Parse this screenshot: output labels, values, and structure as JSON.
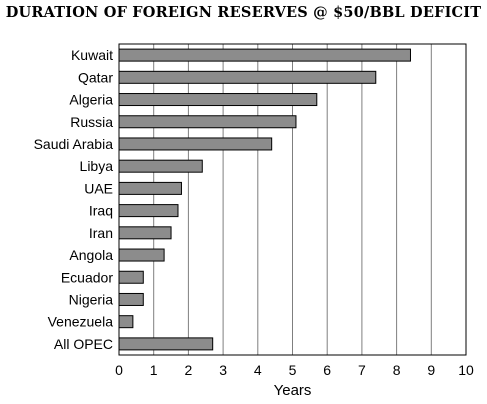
{
  "chart_data": {
    "type": "bar",
    "orientation": "horizontal",
    "title": "DURATION OF FOREIGN RESERVES @ $50/BBL DEFICIT",
    "xlabel": "Years",
    "ylabel": "",
    "xlim": [
      0,
      10
    ],
    "x_ticks": [
      "0",
      "1",
      "2",
      "3",
      "4",
      "5",
      "6",
      "7",
      "8",
      "9",
      "10"
    ],
    "grid": "vertical",
    "legend": "none",
    "categories": [
      "Kuwait",
      "Qatar",
      "Algeria",
      "Russia",
      "Saudi Arabia",
      "Libya",
      "UAE",
      "Iraq",
      "Iran",
      "Angola",
      "Ecuador",
      "Nigeria",
      "Venezuela",
      "All OPEC"
    ],
    "values": [
      8.4,
      7.4,
      5.7,
      5.1,
      4.4,
      2.4,
      1.8,
      1.7,
      1.5,
      1.3,
      0.7,
      0.7,
      0.4,
      2.7
    ],
    "colors": {
      "bar_fill": "#8c8c8c",
      "bar_stroke": "#000000",
      "grid": "#7f7f7f"
    }
  }
}
